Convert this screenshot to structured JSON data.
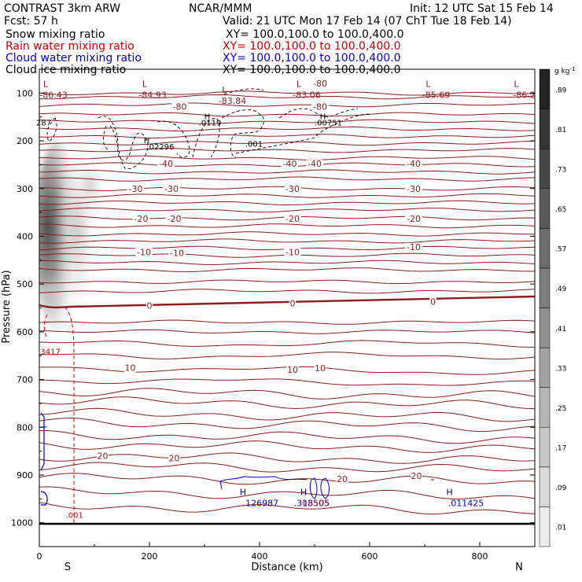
{
  "header": {
    "model_line": "CONTRAST   3km ARW",
    "org": "NCAR/MMM",
    "init": "Init: 12 UTC Sat 15 Feb 14",
    "fcst": "Fcst:    57 h",
    "valid": "Valid: 21 UTC Mon 17 Feb 14 (07 ChT Tue 18 Feb 14)",
    "fields": [
      {
        "label": "Snow mixing ratio",
        "xy": "XY= 100.0,100.0 to 100.0,400.0",
        "color": "#000000"
      },
      {
        "label": "Rain water mixing ratio",
        "xy": "XY= 100.0,100.0 to 100.0,400.0",
        "color": "#cc0000"
      },
      {
        "label": "Cloud water mixing ratio",
        "xy": "XY= 100.0,100.0 to 100.0,400.0",
        "color": "#0000cc"
      },
      {
        "label": "Cloud ice mixing ratio",
        "xy": "XY= 100.0,100.0 to 100.0,400.0",
        "color": "#000000"
      }
    ]
  },
  "chart_data": {
    "type": "contour",
    "xlabel": "Distance (km)",
    "ylabel": "Pressure (hPa)",
    "xlim": [
      0,
      900
    ],
    "ylim": [
      1050,
      50
    ],
    "xticks": [
      0,
      200,
      400,
      600,
      800
    ],
    "yticks": [
      100,
      200,
      300,
      400,
      500,
      600,
      700,
      800,
      900,
      1000
    ],
    "x_end_labels": {
      "left": "S",
      "right": "N"
    },
    "colorbar": {
      "unit": "g kg",
      "unit_exp": "-1",
      "levels": [
        ".01",
        ".09",
        ".17",
        ".25",
        ".33",
        ".41",
        ".49",
        ".57",
        ".65",
        ".73",
        ".81",
        ".89"
      ]
    },
    "temperature_contours": {
      "color": "#8b1a1a",
      "labels": [
        {
          "text": "-80",
          "x": 255,
          "p": 128
        },
        {
          "text": "-80",
          "x": 510,
          "p": 80
        },
        {
          "text": "-80",
          "x": 510,
          "p": 128
        },
        {
          "text": "-40",
          "x": 230,
          "p": 248
        },
        {
          "text": "-40",
          "x": 455,
          "p": 248
        },
        {
          "text": "-40",
          "x": 500,
          "p": 248
        },
        {
          "text": "-40",
          "x": 680,
          "p": 248
        },
        {
          "text": "-30",
          "x": 175,
          "p": 300
        },
        {
          "text": "-30",
          "x": 240,
          "p": 300
        },
        {
          "text": "-30",
          "x": 460,
          "p": 300
        },
        {
          "text": "-30",
          "x": 680,
          "p": 300
        },
        {
          "text": "-20",
          "x": 185,
          "p": 363
        },
        {
          "text": "-20",
          "x": 245,
          "p": 363
        },
        {
          "text": "-20",
          "x": 460,
          "p": 363
        },
        {
          "text": "-20",
          "x": 680,
          "p": 363
        },
        {
          "text": "-10",
          "x": 190,
          "p": 433
        },
        {
          "text": "-10",
          "x": 250,
          "p": 435
        },
        {
          "text": "-10",
          "x": 460,
          "p": 433
        },
        {
          "text": "-10",
          "x": 680,
          "p": 422
        },
        {
          "text": "0",
          "x": 200,
          "p": 545
        },
        {
          "text": "0",
          "x": 460,
          "p": 540
        },
        {
          "text": "0",
          "x": 715,
          "p": 537
        },
        {
          "text": "10",
          "x": 165,
          "p": 675
        },
        {
          "text": "10",
          "x": 460,
          "p": 679
        },
        {
          "text": "10",
          "x": 510,
          "p": 676
        },
        {
          "text": "20",
          "x": 115,
          "p": 860
        },
        {
          "text": "20",
          "x": 245,
          "p": 865
        },
        {
          "text": "20",
          "x": 550,
          "p": 908
        },
        {
          "text": "20",
          "x": 685,
          "p": 902
        }
      ],
      "extrema": [
        {
          "mark": "L",
          "value": "-86.43",
          "x": 20,
          "p": 100
        },
        {
          "mark": "L",
          "value": "-84.93",
          "x": 200,
          "p": 100
        },
        {
          "mark": "L",
          "value": "-83.84",
          "x": 345,
          "p": 113
        },
        {
          "mark": "L",
          "value": "-83.06",
          "x": 480,
          "p": 100
        },
        {
          "mark": "L",
          "value": "-85.69",
          "x": 715,
          "p": 100
        },
        {
          "mark": "L",
          "value": "-86.2",
          "x": 875,
          "p": 100
        }
      ]
    },
    "cloud_ice_labels": [
      {
        "text": "287",
        "x": 8,
        "p": 168
      },
      {
        "text": ".001",
        "x": 390,
        "p": 212
      },
      {
        "text": "H",
        "x": 305,
        "p": 155
      },
      {
        "text": ".0119",
        "x": 310,
        "p": 168
      },
      {
        "text": "H",
        "x": 515,
        "p": 155
      },
      {
        "text": ".00751",
        "x": 525,
        "p": 168
      },
      {
        "text": "H",
        "x": 195,
        "p": 205
      },
      {
        "text": ".02296",
        "x": 220,
        "p": 218
      }
    ],
    "rain_labels": [
      {
        "text": "3417",
        "x": 2,
        "p": 647
      },
      {
        "text": ".001",
        "x": 48,
        "p": 990
      }
    ],
    "cloud_water_labels": [
      {
        "text": "H",
        "x": 370,
        "p": 942
      },
      {
        "text": ".126987",
        "x": 402,
        "p": 965
      },
      {
        "text": "H",
        "x": 480,
        "p": 942
      },
      {
        "text": ".318505",
        "x": 495,
        "p": 965
      },
      {
        "text": "H",
        "x": 745,
        "p": 942
      },
      {
        "text": ".011425",
        "x": 775,
        "p": 965
      }
    ],
    "rain_overlap_label": {
      "text": "03505",
      "x": 502,
      "p": 965
    }
  }
}
